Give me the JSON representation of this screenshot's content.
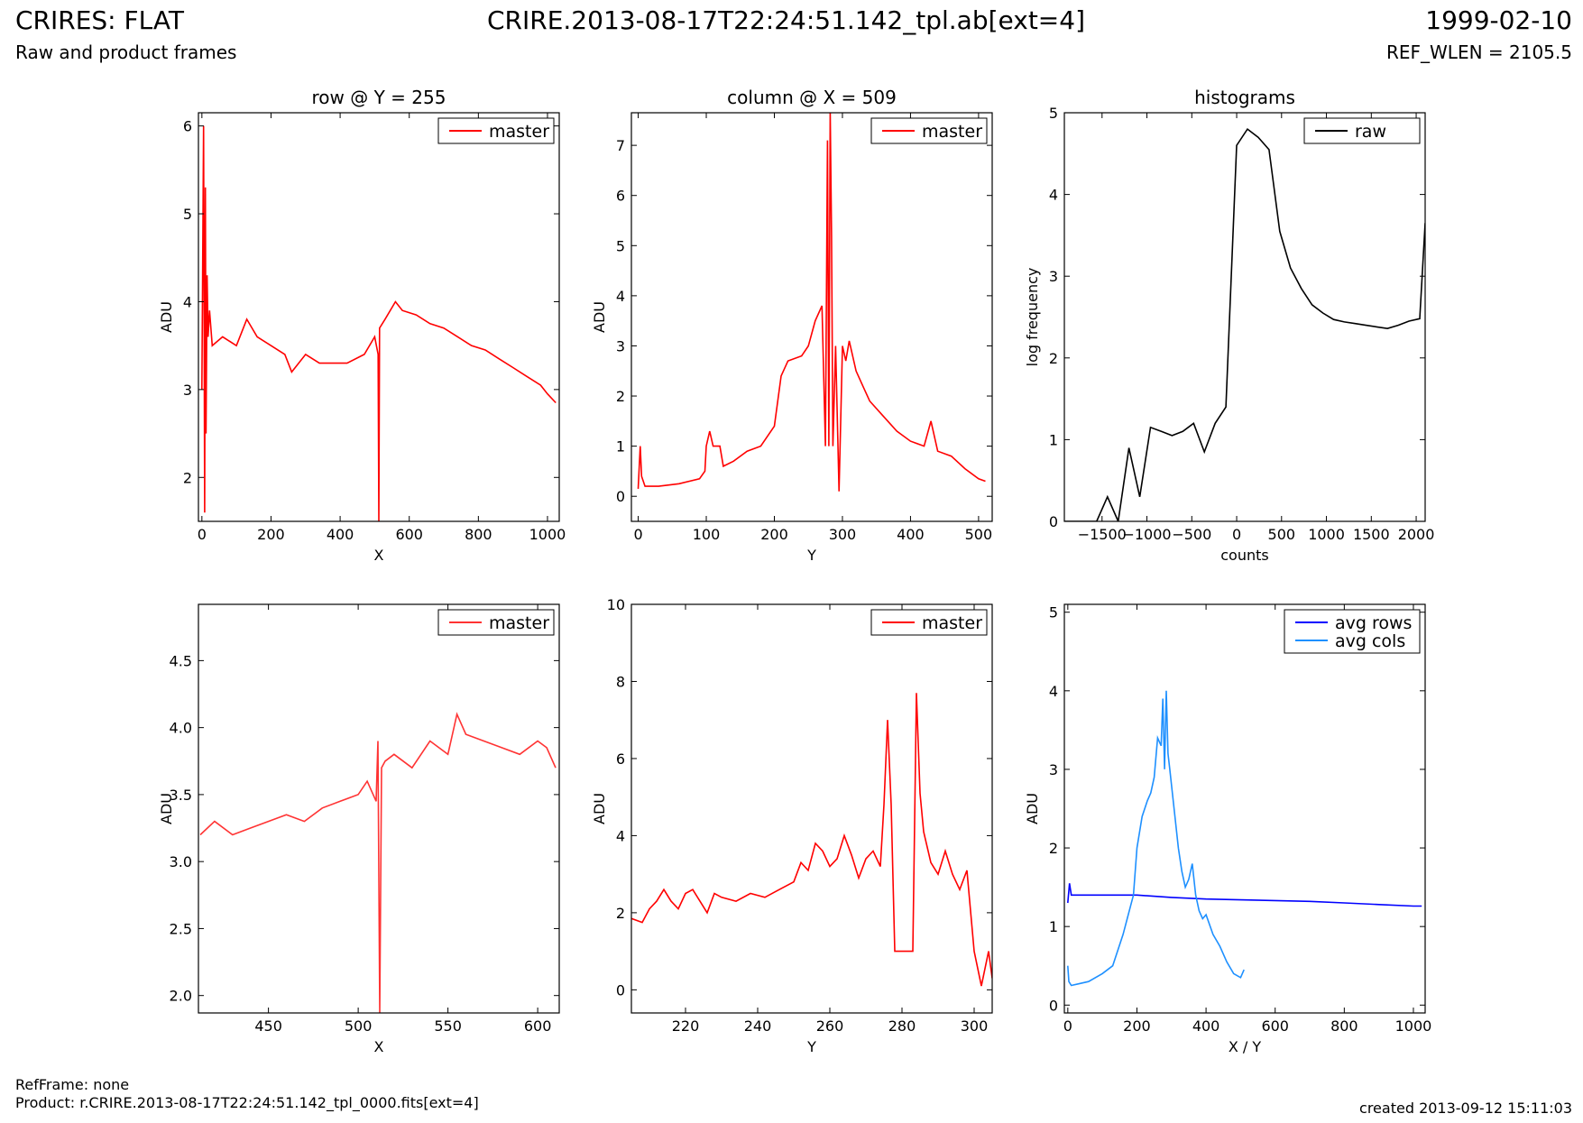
{
  "header": {
    "instrument_title": "CRIRES: FLAT",
    "subtitle": "Raw and product frames",
    "file_title": "CRIRE.2013-08-17T22:24:51.142_tpl.ab[ext=4]",
    "date": "1999-02-10",
    "ref_wlen": "REF_WLEN = 2105.5"
  },
  "footer": {
    "ref_frame": "RefFrame: none",
    "product": "Product: r.CRIRE.2013-08-17T22:24:51.142_tpl_0000.fits[ext=4]",
    "created": "created 2013-09-12 15:11:03"
  },
  "colors": {
    "master": "#ff0000",
    "raw": "#000000",
    "avg_rows": "#0000ff",
    "avg_cols": "#1e90ff"
  },
  "chart_data": [
    {
      "type": "line",
      "title": "row @ Y = 255",
      "xlabel": "X",
      "ylabel": "ADU",
      "xlim": [
        -10,
        1034
      ],
      "ylim": [
        1.5,
        6.15
      ],
      "xticks": [
        "0",
        "200",
        "400",
        "600",
        "800",
        "1000"
      ],
      "yticks": [
        "2",
        "3",
        "4",
        "5",
        "6"
      ],
      "legend": "top-right",
      "series": [
        {
          "name": "master",
          "color": "#ff0000",
          "x": [
            0,
            5,
            8,
            10,
            12,
            15,
            18,
            22,
            30,
            60,
            100,
            130,
            160,
            200,
            240,
            260,
            300,
            340,
            380,
            420,
            470,
            500,
            510,
            512,
            514,
            530,
            560,
            580,
            620,
            660,
            700,
            740,
            780,
            820,
            860,
            900,
            940,
            980,
            1000,
            1024
          ],
          "y": [
            3.0,
            6.0,
            1.6,
            5.3,
            2.5,
            4.3,
            3.6,
            3.9,
            3.5,
            3.6,
            3.5,
            3.8,
            3.6,
            3.5,
            3.4,
            3.2,
            3.4,
            3.3,
            3.3,
            3.3,
            3.4,
            3.6,
            3.4,
            1.5,
            3.7,
            3.8,
            4.0,
            3.9,
            3.85,
            3.75,
            3.7,
            3.6,
            3.5,
            3.45,
            3.35,
            3.25,
            3.15,
            3.05,
            2.95,
            2.85
          ]
        }
      ]
    },
    {
      "type": "line",
      "title": "column @ X = 509",
      "xlabel": "Y",
      "ylabel": "ADU",
      "xlim": [
        -10,
        520
      ],
      "ylim": [
        -0.5,
        7.65
      ],
      "xticks": [
        "0",
        "100",
        "200",
        "300",
        "400",
        "500"
      ],
      "yticks": [
        "0",
        "1",
        "2",
        "3",
        "4",
        "5",
        "6",
        "7"
      ],
      "legend": "top-right",
      "series": [
        {
          "name": "master",
          "color": "#ff0000",
          "x": [
            0,
            3,
            5,
            10,
            30,
            60,
            90,
            98,
            100,
            105,
            110,
            120,
            125,
            140,
            160,
            180,
            200,
            210,
            220,
            240,
            250,
            260,
            270,
            275,
            278,
            280,
            282,
            284,
            286,
            290,
            295,
            300,
            305,
            310,
            320,
            330,
            340,
            360,
            380,
            400,
            420,
            430,
            440,
            460,
            480,
            500,
            510
          ],
          "y": [
            0.15,
            1.0,
            0.4,
            0.2,
            0.2,
            0.25,
            0.35,
            0.5,
            1.0,
            1.3,
            1.0,
            1.0,
            0.6,
            0.7,
            0.9,
            1.0,
            1.4,
            2.4,
            2.7,
            2.8,
            3.0,
            3.5,
            3.8,
            1.0,
            7.1,
            1.0,
            7.7,
            5.2,
            1.0,
            3.0,
            0.1,
            3.0,
            2.7,
            3.1,
            2.5,
            2.2,
            1.9,
            1.6,
            1.3,
            1.1,
            1.0,
            1.5,
            0.9,
            0.8,
            0.55,
            0.35,
            0.3
          ]
        }
      ]
    },
    {
      "type": "line",
      "title": "histograms",
      "xlabel": "counts",
      "ylabel": "log frequency",
      "xlim": [
        -1920,
        2100
      ],
      "ylim": [
        0,
        5
      ],
      "xticks": [
        "−1500",
        "−1000",
        "−500",
        "0",
        "500",
        "1000",
        "1500",
        "2000"
      ],
      "yticks": [
        "0",
        "1",
        "2",
        "3",
        "4",
        "5"
      ],
      "legend": "top-right",
      "series": [
        {
          "name": "raw",
          "color": "#000000",
          "x": [
            -1920,
            -1560,
            -1440,
            -1320,
            -1200,
            -1080,
            -960,
            -840,
            -720,
            -600,
            -480,
            -360,
            -240,
            -120,
            0,
            120,
            240,
            360,
            480,
            600,
            720,
            840,
            960,
            1080,
            1200,
            1320,
            1440,
            1560,
            1680,
            1800,
            1920,
            2040,
            2100
          ],
          "y": [
            0,
            0,
            0.3,
            0,
            0.9,
            0.3,
            1.15,
            1.1,
            1.05,
            1.1,
            1.2,
            0.85,
            1.2,
            1.4,
            4.6,
            4.8,
            4.7,
            4.55,
            3.55,
            3.1,
            2.85,
            2.65,
            2.55,
            2.47,
            2.44,
            2.42,
            2.4,
            2.38,
            2.36,
            2.4,
            2.45,
            2.48,
            3.65
          ]
        }
      ]
    },
    {
      "type": "line",
      "title": "",
      "xlabel": "X",
      "ylabel": "ADU",
      "xlim": [
        411,
        612
      ],
      "ylim": [
        1.87,
        4.92
      ],
      "xticks": [
        "450",
        "500",
        "550",
        "600"
      ],
      "yticks": [
        "2.0",
        "2.5",
        "3.0",
        "3.5",
        "4.0",
        "4.5"
      ],
      "legend": "top-right",
      "series": [
        {
          "name": "master",
          "color": "#ff3333",
          "x": [
            412,
            420,
            430,
            440,
            450,
            460,
            470,
            480,
            490,
            500,
            505,
            510,
            511,
            512,
            513,
            515,
            520,
            530,
            540,
            550,
            555,
            560,
            570,
            580,
            590,
            600,
            605,
            610
          ],
          "y": [
            3.2,
            3.3,
            3.2,
            3.25,
            3.3,
            3.35,
            3.3,
            3.4,
            3.45,
            3.5,
            3.6,
            3.45,
            3.9,
            1.87,
            3.7,
            3.75,
            3.8,
            3.7,
            3.9,
            3.8,
            4.1,
            3.95,
            3.9,
            3.85,
            3.8,
            3.9,
            3.85,
            3.7
          ]
        }
      ]
    },
    {
      "type": "line",
      "title": "",
      "xlabel": "Y",
      "ylabel": "ADU",
      "xlim": [
        205,
        305
      ],
      "ylim": [
        -0.6,
        10
      ],
      "xticks": [
        "220",
        "240",
        "260",
        "280",
        "300"
      ],
      "yticks": [
        "0",
        "2",
        "4",
        "6",
        "8",
        "10"
      ],
      "legend": "top-right",
      "series": [
        {
          "name": "master",
          "color": "#ff0000",
          "x": [
            205,
            208,
            210,
            212,
            214,
            216,
            218,
            220,
            222,
            224,
            226,
            228,
            230,
            234,
            238,
            242,
            246,
            250,
            252,
            254,
            256,
            258,
            260,
            262,
            264,
            266,
            268,
            270,
            272,
            274,
            275,
            276,
            277,
            278,
            283,
            284,
            285,
            286,
            288,
            290,
            292,
            294,
            296,
            298,
            300,
            302,
            304,
            305
          ],
          "y": [
            1.85,
            1.75,
            2.1,
            2.3,
            2.6,
            2.3,
            2.1,
            2.5,
            2.6,
            2.3,
            2.0,
            2.5,
            2.4,
            2.3,
            2.5,
            2.4,
            2.6,
            2.8,
            3.3,
            3.1,
            3.8,
            3.6,
            3.2,
            3.4,
            4.0,
            3.5,
            2.9,
            3.4,
            3.6,
            3.2,
            4.8,
            7.0,
            4.8,
            1.0,
            1.0,
            7.7,
            5.1,
            4.1,
            3.3,
            3.0,
            3.6,
            3.0,
            2.6,
            3.1,
            1.0,
            0.1,
            1.0,
            0.3
          ]
        }
      ]
    },
    {
      "type": "line",
      "title": "",
      "xlabel": "X / Y",
      "ylabel": "ADU",
      "xlim": [
        -10,
        1034
      ],
      "ylim": [
        -0.1,
        5.1
      ],
      "xticks": [
        "0",
        "200",
        "400",
        "600",
        "800",
        "1000"
      ],
      "yticks": [
        "0",
        "1",
        "2",
        "3",
        "4",
        "5"
      ],
      "legend": "top-right",
      "series": [
        {
          "name": "avg rows",
          "color": "#0000ff",
          "x": [
            0,
            5,
            10,
            50,
            100,
            200,
            300,
            400,
            500,
            600,
            700,
            800,
            900,
            1000,
            1024
          ],
          "y": [
            1.3,
            1.55,
            1.4,
            1.4,
            1.4,
            1.4,
            1.37,
            1.35,
            1.34,
            1.33,
            1.32,
            1.3,
            1.28,
            1.26,
            1.26
          ]
        },
        {
          "name": "avg cols",
          "color": "#1e90ff",
          "x": [
            0,
            3,
            10,
            30,
            60,
            100,
            130,
            160,
            190,
            200,
            215,
            230,
            240,
            250,
            260,
            270,
            275,
            280,
            285,
            290,
            295,
            300,
            310,
            320,
            330,
            340,
            350,
            360,
            370,
            380,
            390,
            400,
            420,
            440,
            460,
            480,
            500,
            510
          ],
          "y": [
            0.5,
            0.3,
            0.25,
            0.27,
            0.3,
            0.4,
            0.5,
            0.9,
            1.4,
            2.0,
            2.4,
            2.6,
            2.7,
            2.9,
            3.4,
            3.3,
            3.9,
            3.0,
            4.0,
            3.2,
            3.0,
            2.8,
            2.4,
            2.0,
            1.7,
            1.5,
            1.6,
            1.8,
            1.4,
            1.2,
            1.1,
            1.15,
            0.9,
            0.75,
            0.55,
            0.4,
            0.35,
            0.45
          ]
        }
      ]
    }
  ]
}
